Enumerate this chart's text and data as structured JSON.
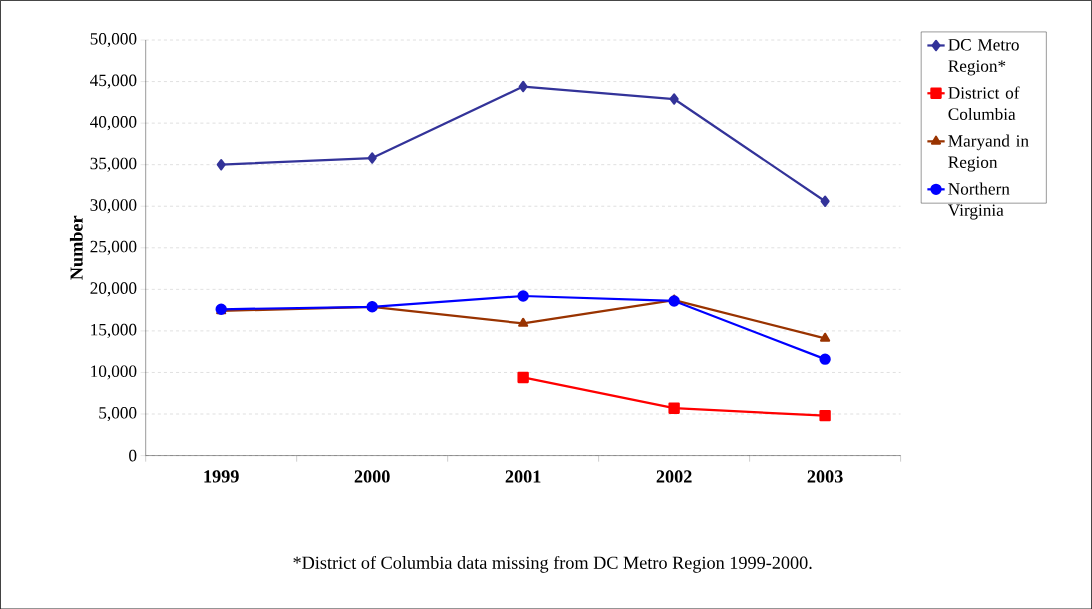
{
  "chart_data": {
    "type": "line",
    "ylabel": "Number",
    "categories": [
      "1999",
      "2000",
      "2001",
      "2002",
      "2003"
    ],
    "series": [
      {
        "name": "DC Metro Region*",
        "color": "#333399",
        "marker": "diamond",
        "values": [
          35000,
          35800,
          44400,
          42900,
          30600
        ]
      },
      {
        "name": "District of Columbia",
        "color": "#ff0000",
        "marker": "square",
        "values": [
          null,
          null,
          9400,
          5700,
          4800
        ]
      },
      {
        "name": "Maryand in Region",
        "color": "#993300",
        "marker": "triangle",
        "values": [
          17400,
          17900,
          15900,
          18700,
          14100
        ]
      },
      {
        "name": "Northern Virginia",
        "color": "#0000ff",
        "marker": "circle",
        "values": [
          17600,
          17900,
          19200,
          18600,
          11600
        ]
      }
    ],
    "ylim": [
      0,
      50000
    ],
    "yticks": [
      0,
      {
        "value": 5000,
        "label": "5,000"
      },
      {
        "value": 10000,
        "label": "10,000"
      },
      {
        "value": 15000,
        "label": "15,000"
      },
      {
        "value": 20000,
        "label": "20,000"
      },
      {
        "value": 25000,
        "label": "25,000"
      },
      {
        "value": 30000,
        "label": "30,000"
      },
      {
        "value": 35000,
        "label": "35,000"
      },
      {
        "value": 40000,
        "label": "40,000"
      },
      {
        "value": 45000,
        "label": "45,000"
      },
      {
        "value": 50000,
        "label": "50,000"
      }
    ],
    "grid": "y",
    "legend": "right",
    "line_style": "solid",
    "annotations": [
      "*District of Columbia data missing from DC Metro Region 1999-2000."
    ]
  }
}
